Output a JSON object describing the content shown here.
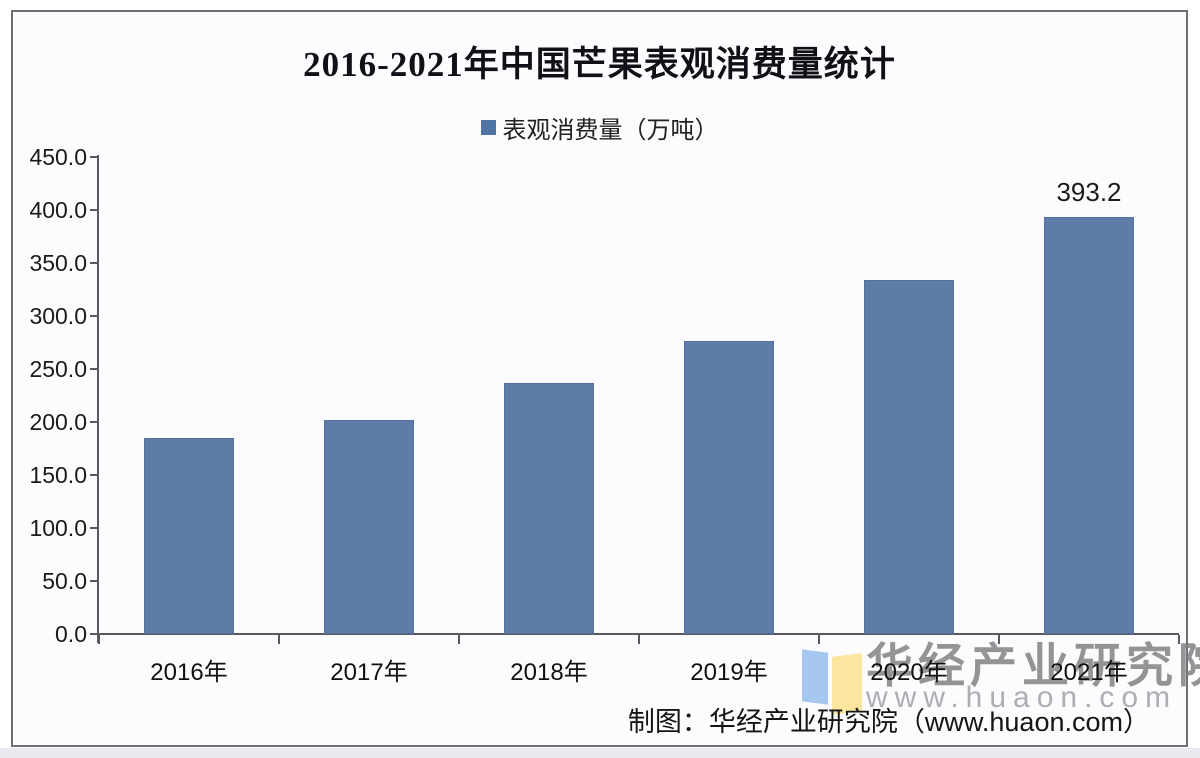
{
  "chart_data": {
    "type": "bar",
    "title": "2016-2021年中国芒果表观消费量统计",
    "legend_label": "表观消费量（万吨）",
    "legend_position": "top",
    "categories": [
      "2016年",
      "2017年",
      "2018年",
      "2019年",
      "2020年",
      "2021年"
    ],
    "values": [
      185,
      202,
      237,
      276,
      334,
      393.2
    ],
    "value_labels": [
      "",
      "",
      "",
      "",
      "",
      "393.2"
    ],
    "ylim": [
      0,
      450
    ],
    "ytick_labels": [
      "450.0",
      "400.0",
      "350.0",
      "300.0",
      "250.0",
      "200.0",
      "150.0",
      "100.0",
      "50.0",
      "0.0"
    ],
    "grid": "off",
    "colors": {
      "bar": "#5f7ca9",
      "bar_border": "#52719f",
      "legend_marker": "#4f74a6",
      "axis": "#58585e"
    }
  },
  "watermark": {
    "org": "华经产业研究院",
    "site": "www.huaon.com",
    "logo_blue": "#a6c7ef",
    "logo_yellow": "#fbe59f"
  },
  "footer": {
    "credit": "制图：华经产业研究院（www.huaon.com）"
  }
}
